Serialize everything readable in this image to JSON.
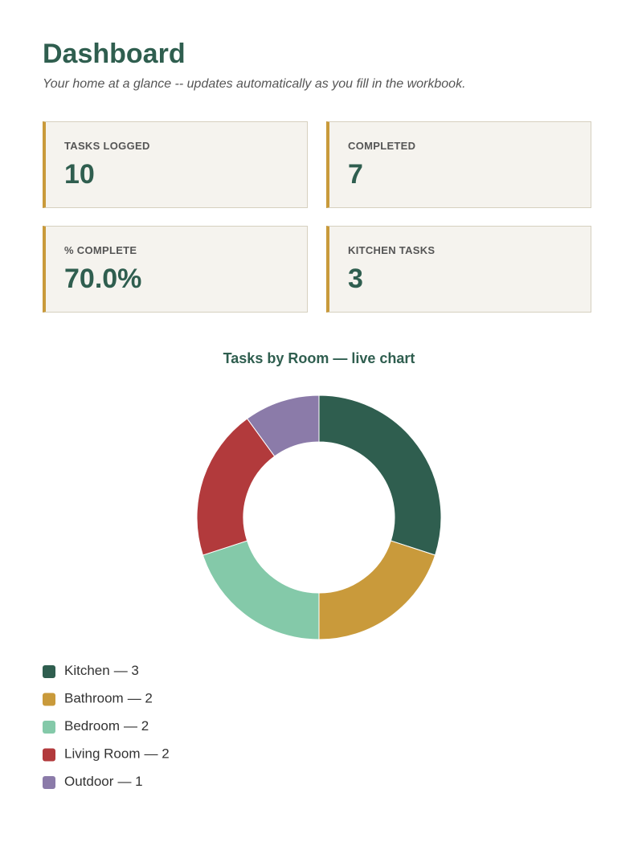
{
  "header": {
    "title": "Dashboard",
    "subtitle": "Your home at a glance -- updates automatically as you fill in the workbook."
  },
  "cards": [
    {
      "label": "TASKS LOGGED",
      "value": "10"
    },
    {
      "label": "COMPLETED",
      "value": "7"
    },
    {
      "label": "% COMPLETE",
      "value": "70.0%"
    },
    {
      "label": "KITCHEN TASKS",
      "value": "3"
    }
  ],
  "chart_data": {
    "type": "donut",
    "title": "Tasks by Room — live chart",
    "categories": [
      "Kitchen",
      "Bathroom",
      "Bedroom",
      "Living Room",
      "Outdoor"
    ],
    "values": [
      3,
      2,
      2,
      2,
      1
    ],
    "value_labels": [
      "— 3",
      "— 2",
      "— 2",
      "— 2",
      "— 1"
    ],
    "colors": [
      "#2f5e4f",
      "#c99a3b",
      "#84c9a9",
      "#b23a3c",
      "#8b7ba9"
    ]
  }
}
